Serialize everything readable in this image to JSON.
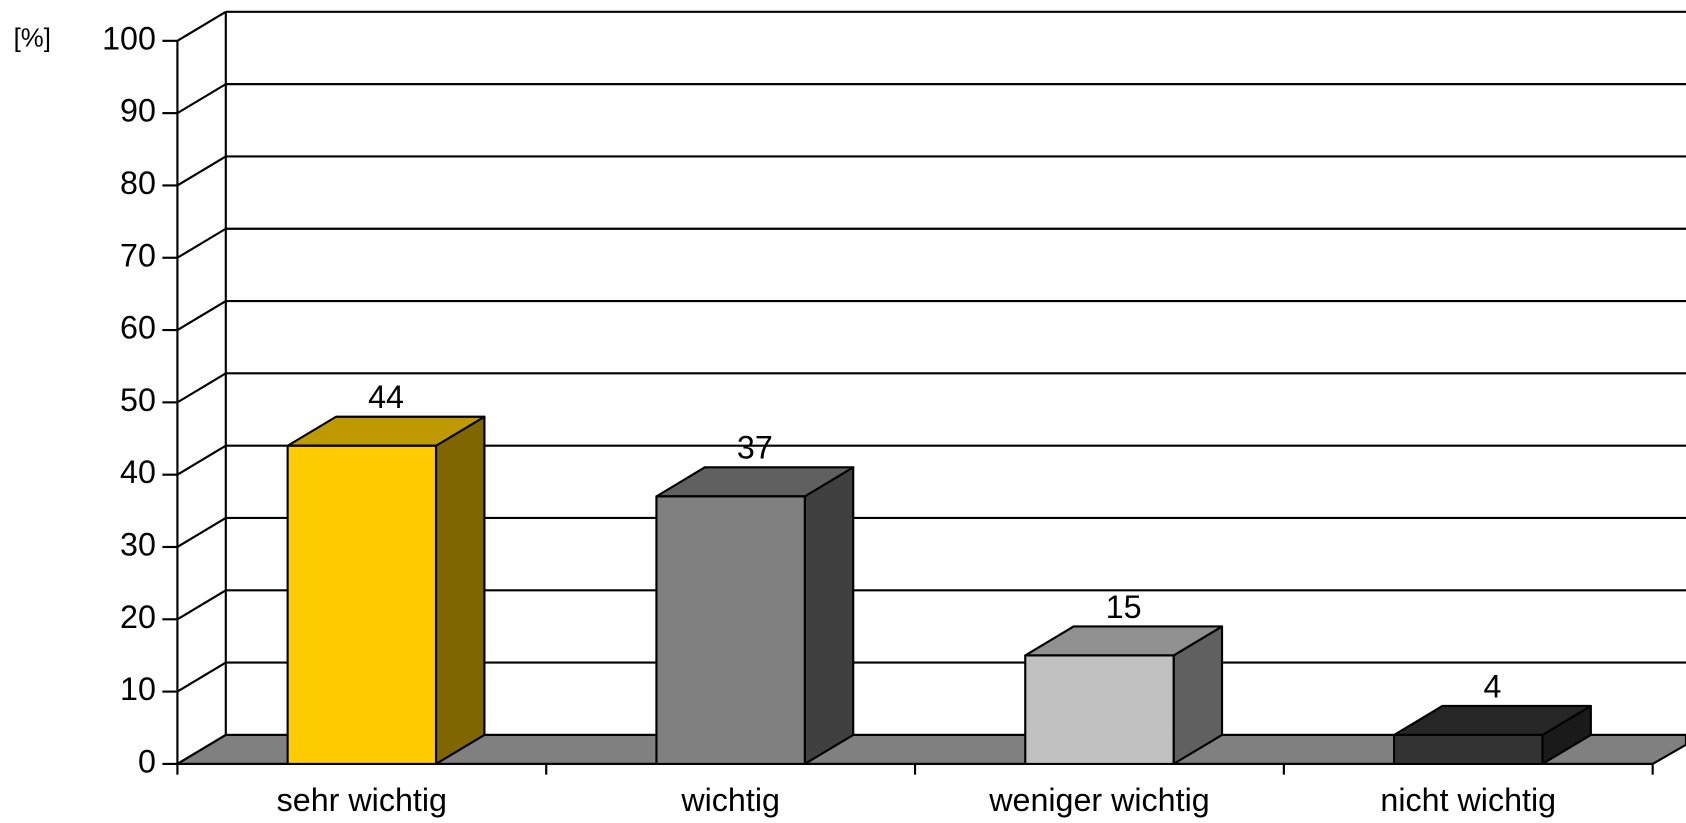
{
  "chart_data": {
    "type": "bar3d",
    "ylabel": "[%]",
    "categories": [
      "sehr wichtig",
      "wichtig",
      "weniger wichtig",
      "nicht wichtig"
    ],
    "values": [
      44,
      37,
      15,
      4
    ],
    "colors": [
      "#ffcc00",
      "#808080",
      "#c0c0c0",
      "#333333"
    ],
    "top_colors": [
      "#bf9900",
      "#606060",
      "#909090",
      "#262626"
    ],
    "side_colors": [
      "#806600",
      "#404040",
      "#606060",
      "#1a1a1a"
    ],
    "floor_color": "#808080",
    "ylim": [
      0,
      100
    ],
    "yticks": [
      0,
      10,
      20,
      30,
      40,
      50,
      60,
      70,
      80,
      90,
      100
    ],
    "grid": true
  }
}
